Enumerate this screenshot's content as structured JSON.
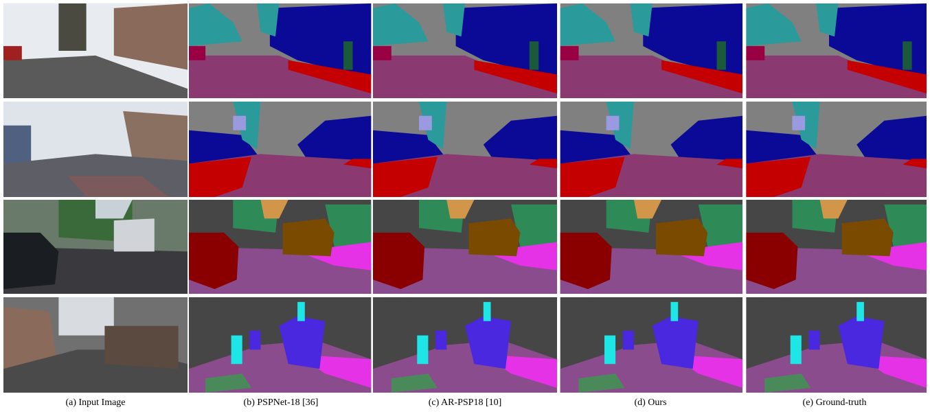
{
  "figure": {
    "captions": [
      "(a) Input Image",
      "(b) PSPNet-18 [36]",
      "(c) AR-PSP18 [10]",
      "(d) Ours",
      "(e) Ground-truth"
    ]
  }
}
